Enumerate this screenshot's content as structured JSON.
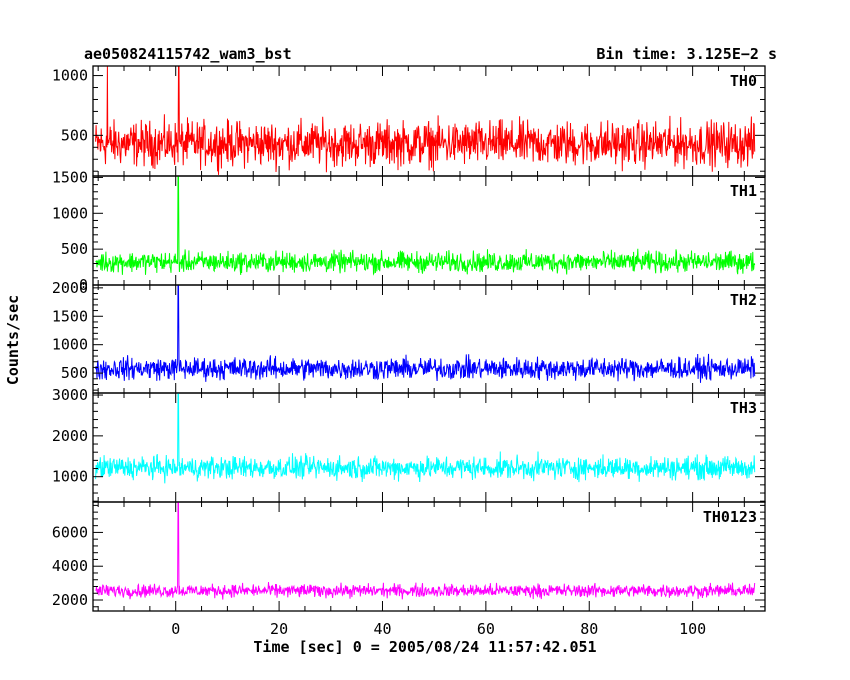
{
  "header": {
    "left_title": "ae050824115742_wam3_bst",
    "right_title": "Bin time: 3.125E−2 s"
  },
  "axes": {
    "xlabel": "Time [sec] 0 = 2005/08/24 11:57:42.051",
    "ylabel": "Counts/sec"
  },
  "chart_data": {
    "type": "line",
    "title": "ae050824115742_wam3_bst",
    "subtitle": "Bin time: 3.125E−2 s",
    "xlabel": "Time [sec] 0 = 2005/08/24 11:57:42.051",
    "ylabel": "Counts/sec",
    "xlim": [
      -16,
      114
    ],
    "xticks": [
      0,
      20,
      40,
      60,
      80,
      100
    ],
    "bin_time_s": 0.03125,
    "data_x_range": [
      -15.5,
      112
    ],
    "grid": false,
    "legend": "none",
    "panels": [
      {
        "name": "TH0",
        "color": "#ff0000",
        "ylim": [
          160,
          1080
        ],
        "yticks": [
          500,
          1000
        ],
        "baseline": 430,
        "noise": 220,
        "spikes": [
          {
            "x": -13.2,
            "y": 1080
          },
          {
            "x": 0.6,
            "y": 1080
          }
        ]
      },
      {
        "name": "TH1",
        "color": "#00ff00",
        "ylim": [
          0,
          1520
        ],
        "yticks": [
          0,
          500,
          1000,
          1500
        ],
        "baseline": 320,
        "noise": 170,
        "spikes": [
          {
            "x": 0.5,
            "y": 1520
          }
        ]
      },
      {
        "name": "TH2",
        "color": "#0000ff",
        "ylim": [
          150,
          2050
        ],
        "yticks": [
          500,
          1000,
          1500,
          2000
        ],
        "baseline": 580,
        "noise": 230,
        "spikes": [
          {
            "x": 0.5,
            "y": 2050
          }
        ]
      },
      {
        "name": "TH3",
        "color": "#00ffff",
        "ylim": [
          380,
          3050
        ],
        "yticks": [
          1000,
          2000,
          3000
        ],
        "baseline": 1220,
        "noise": 330,
        "spikes": [
          {
            "x": 0.5,
            "y": 3050
          }
        ]
      },
      {
        "name": "TH0123",
        "color": "#ff00ff",
        "ylim": [
          1350,
          7800
        ],
        "yticks": [
          2000,
          4000,
          6000
        ],
        "baseline": 2550,
        "noise": 460,
        "spikes": [
          {
            "x": 0.5,
            "y": 7800
          }
        ]
      }
    ]
  }
}
